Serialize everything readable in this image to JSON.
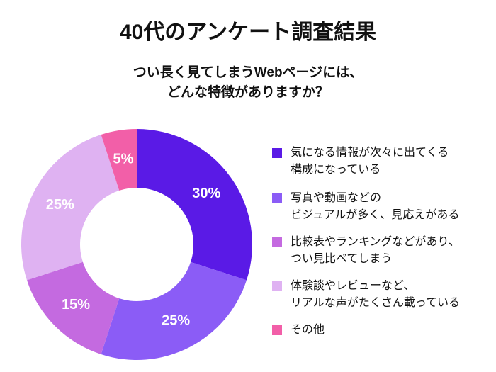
{
  "chart_data": {
    "type": "donut",
    "title": "40代のアンケート調査結果",
    "subtitle": [
      "つい長く見てしまうWebページには、",
      "どんな特徴がありますか？"
    ],
    "categories": [
      [
        "気になる情報が次々に出てくる",
        "構成になっている"
      ],
      [
        "写真や動画などの",
        "ビジュアルが多く、見応えがある"
      ],
      [
        "比較表やランキングなどがあり、",
        "つい見比べてしまう"
      ],
      [
        "体験談やレビューなど、",
        "リアルな声がたくさん載っている"
      ],
      [
        "その他"
      ]
    ],
    "values": [
      30,
      25,
      15,
      25,
      5
    ],
    "value_labels": [
      "30%",
      "25%",
      "15%",
      "25%",
      "5%"
    ],
    "colors": [
      "#5a1ae6",
      "#8b5cf6",
      "#c46ae0",
      "#dfb2f2",
      "#f25fa8"
    ]
  }
}
